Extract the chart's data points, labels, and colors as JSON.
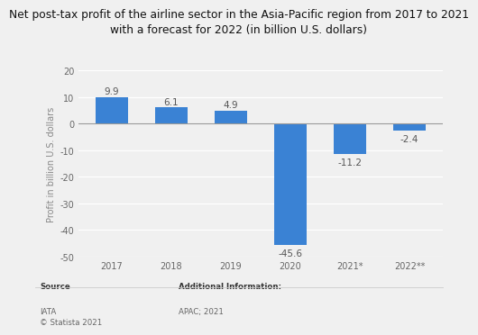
{
  "categories": [
    "2017",
    "2018",
    "2019",
    "2020",
    "2021*",
    "2022**"
  ],
  "values": [
    9.9,
    6.1,
    4.9,
    -45.6,
    -11.2,
    -2.4
  ],
  "bar_color": "#3a82d4",
  "title_line1": "Net post-tax profit of the airline sector in the Asia-Pacific region from 2017 to 2021",
  "title_line2": "with a forecast for 2022 (in billion U.S. dollars)",
  "ylabel": "Profit in billion U.S. dollars",
  "ylim": [
    -50,
    20
  ],
  "yticks": [
    -50,
    -40,
    -30,
    -20,
    -10,
    0,
    10,
    20
  ],
  "background_color": "#f0f0f0",
  "plot_bg_color": "#f0f0f0",
  "source_bold": "Source",
  "source_body": "IATA\n© Statista 2021",
  "addinfo_bold": "Additional Information:",
  "addinfo_body": "APAC; 2021",
  "title_fontsize": 8.8,
  "label_fontsize": 7.5,
  "axis_fontsize": 7.0,
  "footer_fontsize": 6.2,
  "bar_width": 0.55
}
